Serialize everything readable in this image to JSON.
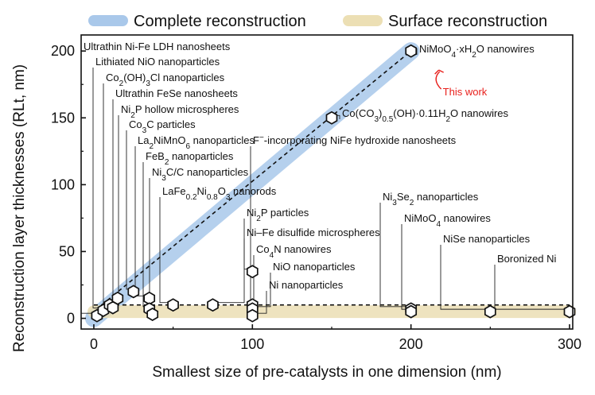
{
  "chart_data": {
    "type": "scatter",
    "xlabel": "Smallest size of pre-catalysts in one dimension (nm)",
    "ylabel": "Reconstruction layer thicknesses (RLt, nm)",
    "xlim": [
      -8,
      302
    ],
    "ylim": [
      -8,
      212
    ],
    "xticks": [
      "0",
      "100",
      "200",
      "300"
    ],
    "yticks": [
      "0",
      "50",
      "100",
      "150",
      "200"
    ],
    "grid": false,
    "legend": {
      "position": "top",
      "entries": [
        {
          "name": "Complete reconstruction",
          "color": "#a9c8ea"
        },
        {
          "name": "Surface reconstruction",
          "color": "#ecdfb4"
        }
      ]
    },
    "bands": [
      {
        "name": "Complete reconstruction",
        "x": [
          0,
          200
        ],
        "y": [
          0,
          200
        ],
        "color": "#a9c8ea"
      },
      {
        "name": "Surface reconstruction",
        "x": [
          0,
          300
        ],
        "y": [
          5,
          5
        ],
        "color": "#ecdfb4"
      }
    ],
    "reference_lines": [
      {
        "style": "dashed",
        "x": [
          5,
          200
        ],
        "y": [
          10,
          200
        ]
      },
      {
        "style": "dashed",
        "x": [
          0,
          300
        ],
        "y": [
          10,
          10
        ]
      }
    ],
    "points": [
      {
        "x": 2,
        "y": 2
      },
      {
        "x": 6,
        "y": 6
      },
      {
        "x": 10,
        "y": 10
      },
      {
        "x": 12,
        "y": 8
      },
      {
        "x": 15,
        "y": 15
      },
      {
        "x": 25,
        "y": 20
      },
      {
        "x": 35,
        "y": 15
      },
      {
        "x": 35,
        "y": 7
      },
      {
        "x": 37,
        "y": 3
      },
      {
        "x": 50,
        "y": 10
      },
      {
        "x": 75,
        "y": 10
      },
      {
        "x": 100,
        "y": 35
      },
      {
        "x": 100,
        "y": 10
      },
      {
        "x": 100,
        "y": 7
      },
      {
        "x": 100,
        "y": 2
      },
      {
        "x": 150,
        "y": 150
      },
      {
        "x": 200,
        "y": 200
      },
      {
        "x": 200,
        "y": 7
      },
      {
        "x": 200,
        "y": 5
      },
      {
        "x": 250,
        "y": 5
      },
      {
        "x": 300,
        "y": 5
      }
    ],
    "annotations": [
      {
        "sub": [
          [
            "Ultrathin Ni-Fe LDH nanosheets",
            ""
          ]
        ],
        "anchor": [
          2,
          2
        ],
        "tx": 105,
        "ty": 63
      },
      {
        "sub": [
          [
            "Lithiated NiO nanoparticles",
            ""
          ]
        ],
        "anchor": [
          6,
          6
        ],
        "tx": 120,
        "ty": 82
      },
      {
        "sub": [
          [
            "Co",
            ""
          ],
          [
            "2",
            "sub"
          ],
          [
            "(OH)",
            ""
          ],
          [
            "3",
            "sub"
          ],
          [
            "Cl nanoparticles",
            ""
          ]
        ],
        "anchor": [
          10,
          10
        ],
        "tx": 133,
        "ty": 102
      },
      {
        "sub": [
          [
            "Ultrathin FeSe nanosheets",
            ""
          ]
        ],
        "anchor": [
          12,
          8
        ],
        "tx": 145,
        "ty": 122
      },
      {
        "sub": [
          [
            "Ni",
            ""
          ],
          [
            "2",
            "sub"
          ],
          [
            "P hollow microspheres",
            ""
          ]
        ],
        "anchor": [
          15,
          15
        ],
        "tx": 152,
        "ty": 142
      },
      {
        "sub": [
          [
            "Co",
            ""
          ],
          [
            "3",
            "sub"
          ],
          [
            "C particles",
            ""
          ]
        ],
        "anchor": [
          25,
          20
        ],
        "tx": 162,
        "ty": 161
      },
      {
        "sub": [
          [
            "La",
            ""
          ],
          [
            "2",
            "sub"
          ],
          [
            "NiMnO",
            ""
          ],
          [
            "6",
            "sub"
          ],
          [
            " nanoparticles",
            ""
          ]
        ],
        "anchor": [
          35,
          15
        ],
        "tx": 173,
        "ty": 181
      },
      {
        "sub": [
          [
            "FeB",
            ""
          ],
          [
            "2",
            "sub"
          ],
          [
            " nanoparticles",
            ""
          ]
        ],
        "anchor": [
          35,
          7
        ],
        "tx": 183,
        "ty": 201
      },
      {
        "sub": [
          [
            "Ni",
            ""
          ],
          [
            "3",
            "sub"
          ],
          [
            "C/C nanoparticles",
            ""
          ]
        ],
        "anchor": [
          37,
          3
        ],
        "tx": 191,
        "ty": 221
      },
      {
        "sub": [
          [
            "LaFe",
            ""
          ],
          [
            "0.2",
            "sub"
          ],
          [
            "Ni",
            ""
          ],
          [
            "0.8",
            "sub"
          ],
          [
            "O",
            ""
          ],
          [
            "3",
            "sub"
          ],
          [
            " nanorods",
            ""
          ]
        ],
        "anchor": [
          50,
          10
        ],
        "tx": 204,
        "ty": 245
      },
      {
        "sub": [
          [
            "Ni",
            ""
          ],
          [
            "2",
            "sub"
          ],
          [
            "P particles",
            ""
          ]
        ],
        "anchor": [
          75,
          10
        ],
        "tx": 310,
        "ty": 272
      },
      {
        "sub": [
          [
            "Ni–Fe disulfide microspheres",
            ""
          ]
        ],
        "anchor": [
          100,
          35
        ],
        "tx": 310,
        "ty": 297
      },
      {
        "sub": [
          [
            "Co",
            ""
          ],
          [
            "4",
            "sub"
          ],
          [
            "N nanowires",
            ""
          ]
        ],
        "anchor": [
          100,
          10
        ],
        "tx": 322,
        "ty": 318
      },
      {
        "sub": [
          [
            "NiO nanoparticles",
            ""
          ]
        ],
        "anchor": [
          100,
          7
        ],
        "tx": 343,
        "ty": 340
      },
      {
        "sub": [
          [
            "Ni nanoparticles",
            ""
          ]
        ],
        "anchor": [
          100,
          2
        ],
        "tx": 338,
        "ty": 363
      },
      {
        "sub": [
          [
            "F",
            ""
          ],
          [
            "−",
            "sup"
          ],
          [
            "-incorporating NiFe hydroxide nanosheets",
            ""
          ]
        ],
        "anchor": [
          100,
          10
        ],
        "tx": 318,
        "ty": 181
      },
      {
        "sub": [
          [
            "Co(CO",
            ""
          ],
          [
            "3",
            "sub"
          ],
          [
            ")",
            ""
          ],
          [
            "0.5",
            "sub"
          ],
          [
            "(OH)·0.11H",
            ""
          ],
          [
            "2",
            "sub"
          ],
          [
            "O nanowires",
            ""
          ]
        ],
        "anchor": [
          150,
          150
        ],
        "tx": 430,
        "ty": 147
      },
      {
        "sub": [
          [
            "NiMoO",
            ""
          ],
          [
            "4",
            "sub"
          ],
          [
            "·xH",
            ""
          ],
          [
            "2",
            "sub"
          ],
          [
            "O nanowires",
            ""
          ]
        ],
        "anchor": [
          200,
          200
        ],
        "tx": 527,
        "ty": 66
      },
      {
        "sub": [
          [
            "Ni",
            ""
          ],
          [
            "3",
            "sub"
          ],
          [
            "Se",
            ""
          ],
          [
            "2",
            "sub"
          ],
          [
            " nanoparticles",
            ""
          ]
        ],
        "anchor": [
          200,
          7
        ],
        "tx": 481,
        "ty": 252
      },
      {
        "sub": [
          [
            "NiMoO",
            ""
          ],
          [
            "4",
            "sub"
          ],
          [
            " nanowires",
            ""
          ]
        ],
        "anchor": [
          200,
          5
        ],
        "tx": 508,
        "ty": 279
      },
      {
        "sub": [
          [
            "NiSe nanoparticles",
            ""
          ]
        ],
        "anchor": [
          250,
          5
        ],
        "tx": 557,
        "ty": 305
      },
      {
        "sub": [
          [
            "Boronized Ni",
            ""
          ]
        ],
        "anchor": [
          300,
          5
        ],
        "tx": 625,
        "ty": 330
      }
    ],
    "highlight": {
      "text": "This work",
      "color": "#e8201c",
      "anchor": [
        200,
        200
      ]
    }
  },
  "colors": {
    "axis": "#111111",
    "marker": "#111111"
  }
}
